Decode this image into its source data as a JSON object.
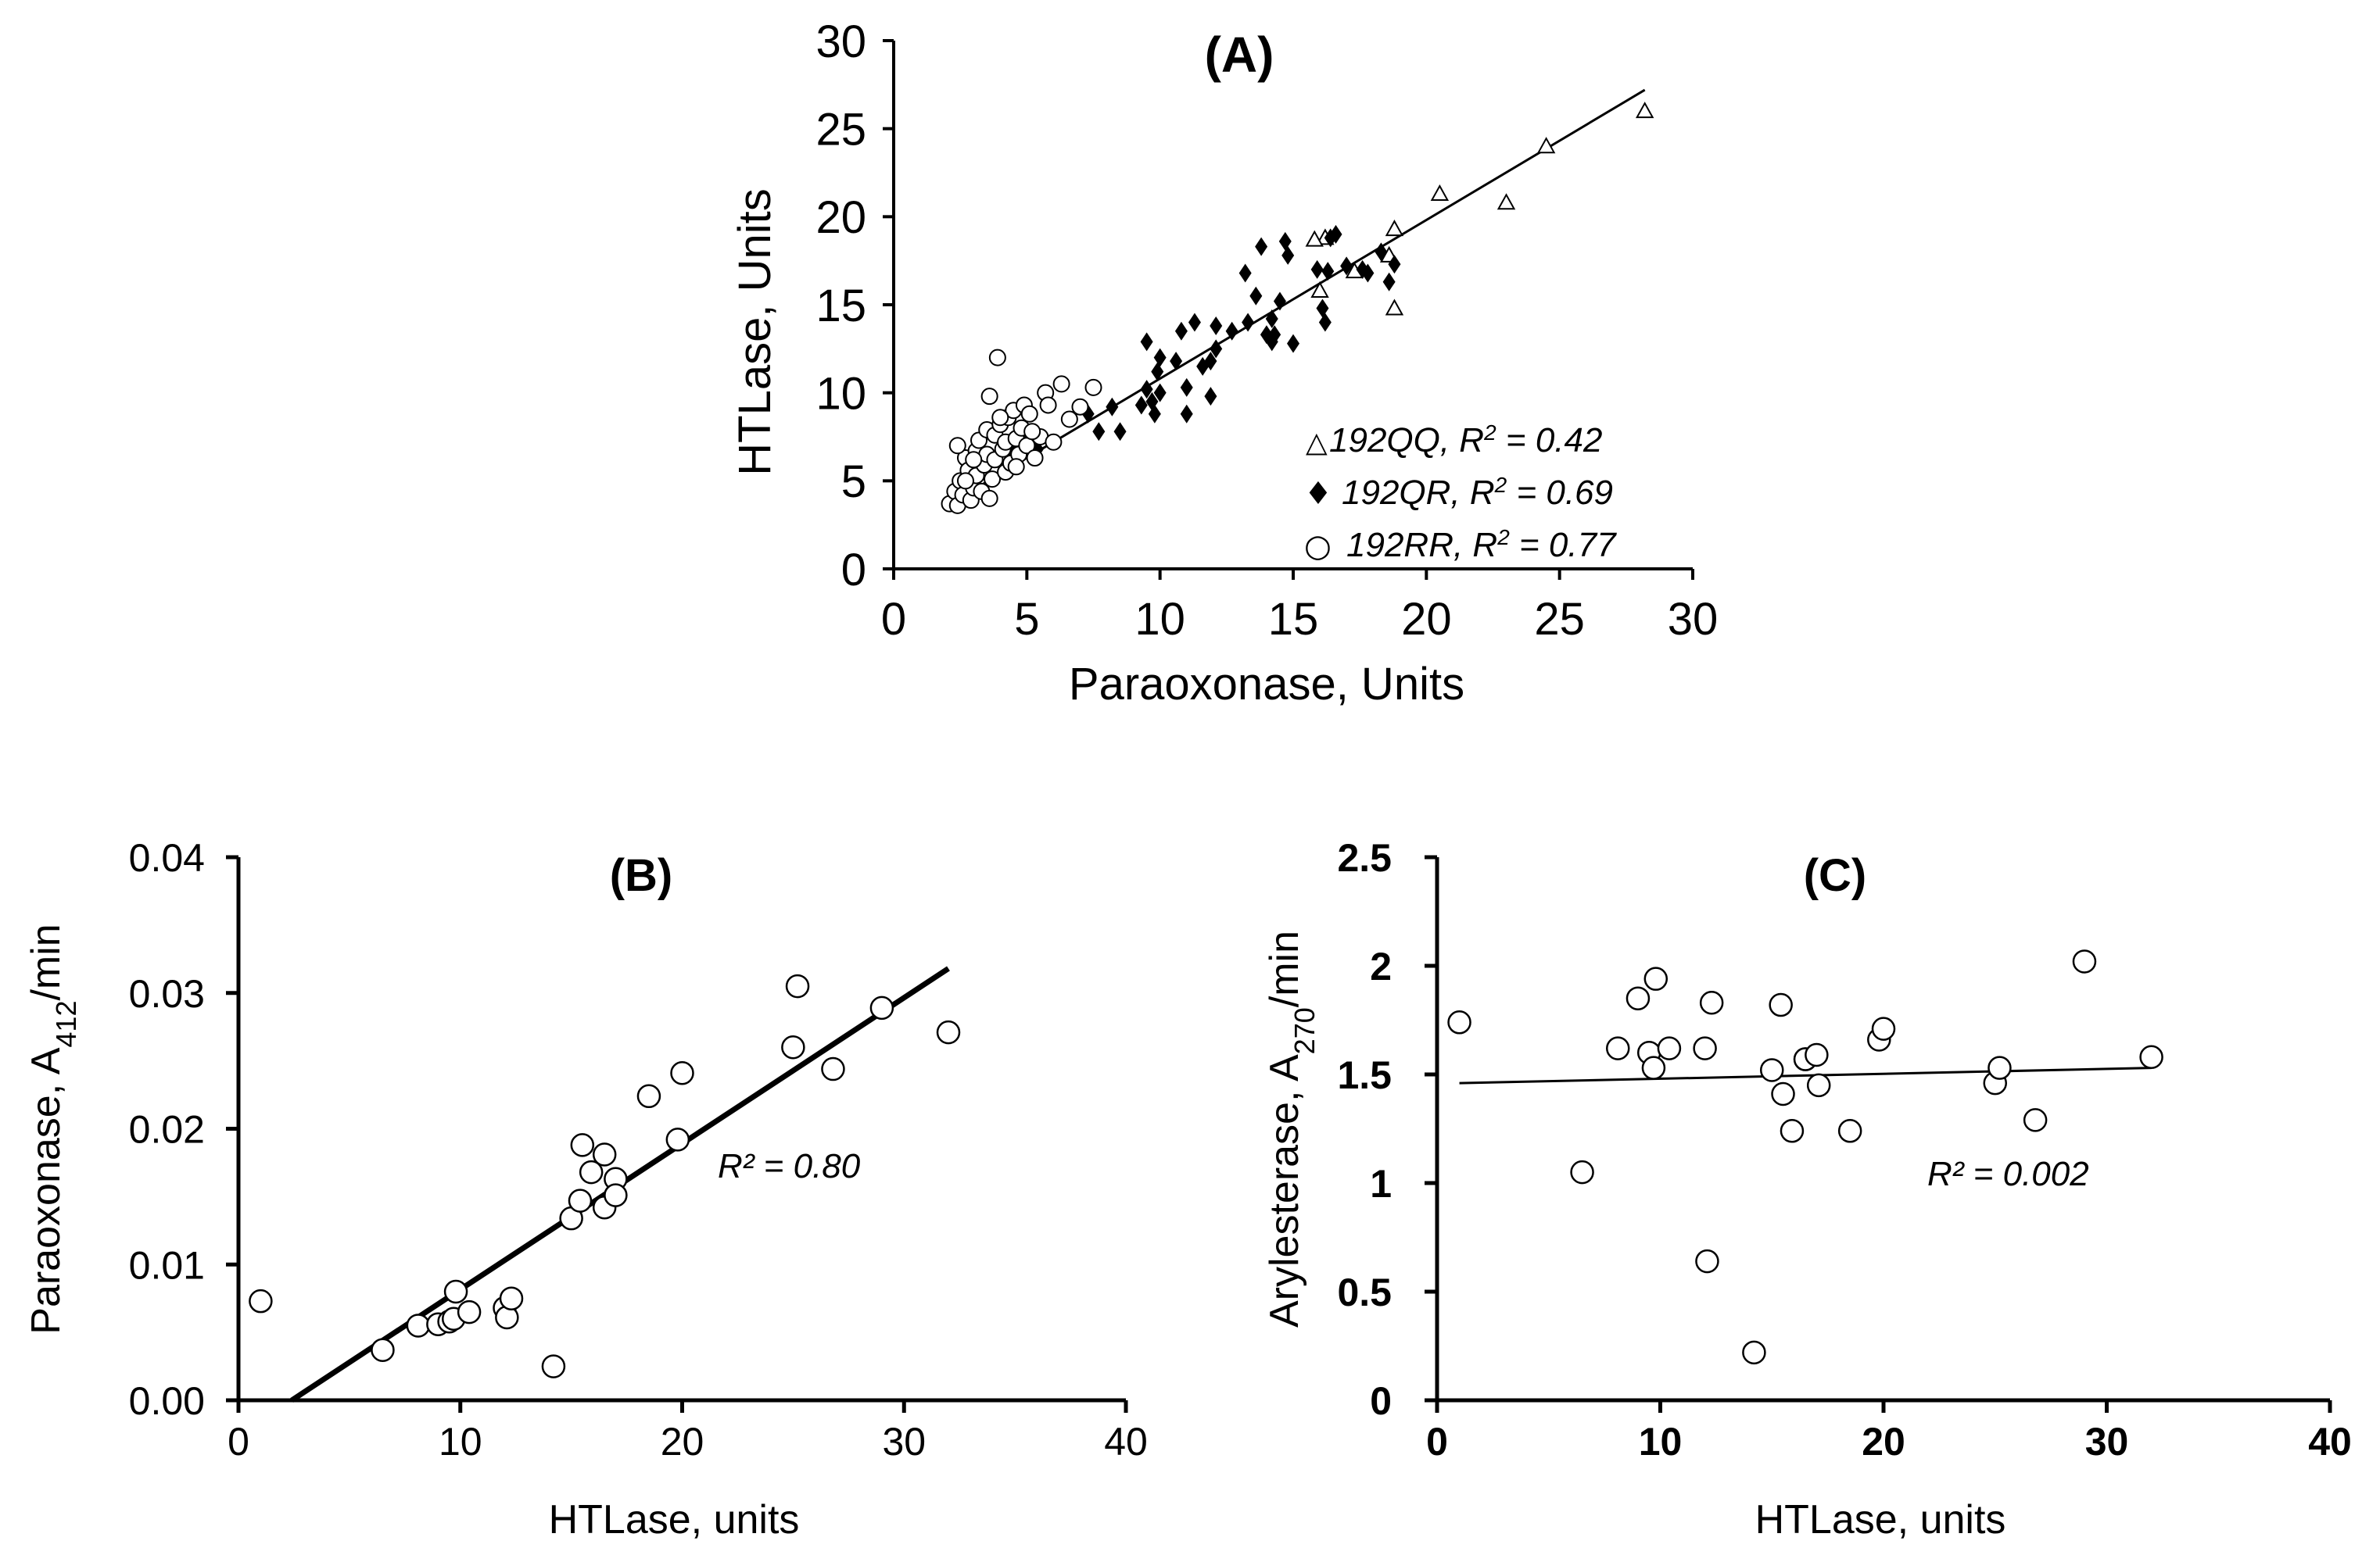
{
  "chart_data": [
    {
      "id": "A",
      "type": "scatter",
      "title": "(A)",
      "xlabel": "Paraoxonase, Units",
      "ylabel": "HTLase, Units",
      "xlim": [
        0,
        30
      ],
      "ylim": [
        0,
        30
      ],
      "xticks": [
        "0",
        "5",
        "10",
        "15",
        "20",
        "25",
        "30"
      ],
      "yticks": [
        "0",
        "5",
        "10",
        "15",
        "20",
        "25",
        "30"
      ],
      "grid": false,
      "legend_position": "bottom-right",
      "fit_line": {
        "x": [
          2.0,
          28.2
        ],
        "y": [
          3.6,
          27.2
        ]
      },
      "series": [
        {
          "name": "192QQ",
          "legend_symbol": "△",
          "legend_name": "192QQ, R",
          "legend_sup": "2",
          "legend_rest": " = 0.42",
          "marker": "triangle-open",
          "points": [
            [
              28.2,
              26.0
            ],
            [
              24.5,
              24.0
            ],
            [
              23.0,
              20.8
            ],
            [
              20.5,
              21.3
            ],
            [
              18.8,
              19.3
            ],
            [
              18.6,
              17.8
            ],
            [
              18.8,
              14.8
            ],
            [
              17.3,
              16.9
            ],
            [
              16.0,
              15.8
            ],
            [
              16.2,
              18.8
            ],
            [
              15.8,
              18.7
            ]
          ]
        },
        {
          "name": "192QR",
          "legend_symbol": "♦",
          "legend_name": "192QR, R",
          "legend_sup": "2",
          "legend_rest": " = 0.69",
          "marker": "diamond-filled",
          "points": [
            [
              4.5,
              6.5
            ],
            [
              5.0,
              7.2
            ],
            [
              5.4,
              6.8
            ],
            [
              7.3,
              8.8
            ],
            [
              7.7,
              7.8
            ],
            [
              8.2,
              9.2
            ],
            [
              8.5,
              7.8
            ],
            [
              9.3,
              9.3
            ],
            [
              9.5,
              10.2
            ],
            [
              9.8,
              8.8
            ],
            [
              9.9,
              11.2
            ],
            [
              10.0,
              10.0
            ],
            [
              9.7,
              9.5
            ],
            [
              9.5,
              12.9
            ],
            [
              10.0,
              12.0
            ],
            [
              10.6,
              11.8
            ],
            [
              10.8,
              13.5
            ],
            [
              11.0,
              10.3
            ],
            [
              11.3,
              14.0
            ],
            [
              11.0,
              8.8
            ],
            [
              11.6,
              11.5
            ],
            [
              11.9,
              11.8
            ],
            [
              12.1,
              12.5
            ],
            [
              11.9,
              9.8
            ],
            [
              12.1,
              13.8
            ],
            [
              12.7,
              13.5
            ],
            [
              13.2,
              16.8
            ],
            [
              13.3,
              14.0
            ],
            [
              13.6,
              15.5
            ],
            [
              14.0,
              13.3
            ],
            [
              14.3,
              13.3
            ],
            [
              14.5,
              15.2
            ],
            [
              14.2,
              14.2
            ],
            [
              13.8,
              18.3
            ],
            [
              14.2,
              12.9
            ],
            [
              14.7,
              18.6
            ],
            [
              14.8,
              17.8
            ],
            [
              15.0,
              12.8
            ],
            [
              15.9,
              17.0
            ],
            [
              16.2,
              14.0
            ],
            [
              16.1,
              14.8
            ],
            [
              16.3,
              16.9
            ],
            [
              16.6,
              19.0
            ],
            [
              16.4,
              18.8
            ],
            [
              17.0,
              17.2
            ],
            [
              17.6,
              17.0
            ],
            [
              17.8,
              16.8
            ],
            [
              18.3,
              18.0
            ],
            [
              18.6,
              16.3
            ],
            [
              18.8,
              17.3
            ]
          ]
        },
        {
          "name": "192RR",
          "legend_symbol": "○",
          "legend_name": "192RR, R",
          "legend_sup": "2",
          "legend_rest": " = 0.77",
          "marker": "circle-open",
          "points": [
            [
              2.1,
              3.7
            ],
            [
              2.3,
              4.4
            ],
            [
              2.4,
              3.6
            ],
            [
              2.5,
              5.0
            ],
            [
              2.6,
              4.2
            ],
            [
              2.7,
              6.3
            ],
            [
              2.8,
              5.6
            ],
            [
              2.9,
              3.9
            ],
            [
              3.0,
              4.6
            ],
            [
              3.1,
              5.3
            ],
            [
              3.1,
              6.7
            ],
            [
              3.2,
              7.3
            ],
            [
              3.3,
              4.4
            ],
            [
              3.4,
              5.9
            ],
            [
              3.5,
              6.5
            ],
            [
              3.5,
              7.9
            ],
            [
              3.6,
              4.0
            ],
            [
              3.7,
              5.1
            ],
            [
              3.8,
              6.2
            ],
            [
              3.8,
              7.6
            ],
            [
              3.9,
              12.0
            ],
            [
              4.0,
              8.2
            ],
            [
              4.1,
              6.8
            ],
            [
              4.2,
              5.5
            ],
            [
              4.2,
              7.2
            ],
            [
              4.3,
              8.6
            ],
            [
              4.4,
              6.0
            ],
            [
              4.5,
              9.0
            ],
            [
              4.6,
              7.4
            ],
            [
              4.7,
              6.5
            ],
            [
              4.8,
              8.0
            ],
            [
              4.9,
              9.3
            ],
            [
              5.0,
              7.0
            ],
            [
              5.1,
              8.8
            ],
            [
              5.3,
              6.3
            ],
            [
              5.5,
              7.5
            ],
            [
              5.7,
              10.0
            ],
            [
              5.8,
              9.3
            ],
            [
              6.0,
              7.2
            ],
            [
              6.3,
              10.5
            ],
            [
              7.0,
              9.2
            ],
            [
              7.5,
              10.3
            ],
            [
              3.6,
              9.8
            ],
            [
              2.4,
              7.0
            ],
            [
              3.0,
              6.2
            ],
            [
              4.6,
              5.8
            ],
            [
              5.2,
              7.8
            ],
            [
              6.6,
              8.5
            ],
            [
              2.7,
              5.0
            ],
            [
              4.0,
              8.6
            ]
          ]
        }
      ]
    },
    {
      "id": "B",
      "type": "scatter",
      "title": "(B)",
      "xlabel": "HTLase, units",
      "ylabel_main": "Paraoxonase, A",
      "ylabel_sub": "412",
      "ylabel_rest": "/min",
      "xlim": [
        0,
        40
      ],
      "ylim": [
        0,
        0.04
      ],
      "xticks": [
        "0",
        "10",
        "20",
        "30",
        "40"
      ],
      "yticks": [
        "0.00",
        "0.01",
        "0.02",
        "0.03",
        "0.04"
      ],
      "grid": false,
      "annotation": "R² = 0.80",
      "fit_line": {
        "x": [
          2.4,
          32.0
        ],
        "y": [
          0.0,
          0.0318
        ]
      },
      "series": [
        {
          "name": "samples",
          "marker": "circle-open",
          "points": [
            [
              1.0,
              0.0073
            ],
            [
              6.5,
              0.0037
            ],
            [
              8.1,
              0.0055
            ],
            [
              9.0,
              0.0056
            ],
            [
              9.5,
              0.0058
            ],
            [
              9.7,
              0.006
            ],
            [
              9.8,
              0.008
            ],
            [
              10.4,
              0.0065
            ],
            [
              12.0,
              0.0068
            ],
            [
              12.1,
              0.0061
            ],
            [
              12.3,
              0.0075
            ],
            [
              14.2,
              0.0025
            ],
            [
              15.0,
              0.0134
            ],
            [
              15.4,
              0.0147
            ],
            [
              15.5,
              0.0188
            ],
            [
              15.9,
              0.0168
            ],
            [
              16.5,
              0.0142
            ],
            [
              16.5,
              0.0181
            ],
            [
              17.0,
              0.0163
            ],
            [
              17.0,
              0.0151
            ],
            [
              18.5,
              0.0224
            ],
            [
              19.8,
              0.0192
            ],
            [
              20.0,
              0.0241
            ],
            [
              25.0,
              0.026
            ],
            [
              25.2,
              0.0305
            ],
            [
              26.8,
              0.0244
            ],
            [
              29.0,
              0.0289
            ],
            [
              32.0,
              0.0271
            ]
          ]
        }
      ]
    },
    {
      "id": "C",
      "type": "scatter",
      "title": "(C)",
      "xlabel": "HTLase, units",
      "ylabel_main": "Arylesterase, A",
      "ylabel_sub": "270",
      "ylabel_rest": "/min",
      "xlim": [
        0,
        40
      ],
      "ylim": [
        0,
        2.5
      ],
      "xticks": [
        "0",
        "10",
        "20",
        "30",
        "40"
      ],
      "yticks": [
        "0",
        "0.5",
        "1",
        "1.5",
        "2",
        "2.5"
      ],
      "grid": false,
      "annotation": "R² = 0.002",
      "fit_line": {
        "x": [
          1.0,
          32.0
        ],
        "y": [
          1.46,
          1.53
        ]
      },
      "series": [
        {
          "name": "samples",
          "marker": "circle-open",
          "points": [
            [
              1.0,
              1.74
            ],
            [
              6.5,
              1.05
            ],
            [
              8.1,
              1.62
            ],
            [
              9.0,
              1.85
            ],
            [
              9.5,
              1.6
            ],
            [
              9.7,
              1.53
            ],
            [
              9.8,
              1.94
            ],
            [
              10.4,
              1.62
            ],
            [
              12.0,
              1.62
            ],
            [
              12.1,
              0.64
            ],
            [
              12.3,
              1.83
            ],
            [
              14.2,
              0.22
            ],
            [
              15.0,
              1.52
            ],
            [
              15.4,
              1.82
            ],
            [
              15.5,
              1.41
            ],
            [
              15.9,
              1.24
            ],
            [
              16.5,
              1.57
            ],
            [
              16.5,
              1.57
            ],
            [
              17.0,
              1.59
            ],
            [
              17.1,
              1.45
            ],
            [
              18.5,
              1.24
            ],
            [
              19.8,
              1.66
            ],
            [
              20.0,
              1.71
            ],
            [
              25.0,
              1.46
            ],
            [
              25.2,
              1.53
            ],
            [
              26.8,
              1.29
            ],
            [
              29.0,
              2.02
            ],
            [
              32.0,
              1.58
            ]
          ]
        }
      ]
    }
  ]
}
